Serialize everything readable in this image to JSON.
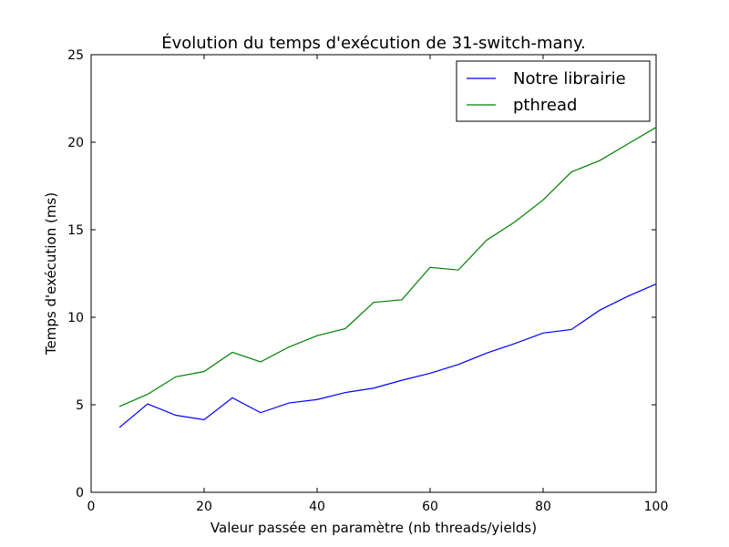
{
  "chart_data": {
    "type": "line",
    "title": "Évolution du temps d'exécution de 31-switch-many.",
    "xlabel": "Valeur passée en paramètre (nb threads/yields)",
    "ylabel": "Temps d'exécution (ms)",
    "xlim": [
      0,
      100
    ],
    "ylim": [
      0,
      25
    ],
    "xticks": [
      "0",
      "20",
      "40",
      "60",
      "80",
      "100"
    ],
    "yticks": [
      "0",
      "5",
      "10",
      "15",
      "20",
      "25"
    ],
    "grid": false,
    "legend_position": "top-right",
    "x": [
      5,
      10,
      15,
      20,
      25,
      30,
      35,
      40,
      45,
      50,
      55,
      60,
      65,
      70,
      75,
      80,
      85,
      90,
      95,
      100
    ],
    "series": [
      {
        "name": "Notre librairie",
        "color": "#0000ff",
        "values": [
          3.7,
          5.05,
          4.4,
          4.15,
          5.4,
          4.55,
          5.1,
          5.3,
          5.7,
          5.95,
          6.4,
          6.8,
          7.3,
          7.95,
          8.5,
          9.1,
          9.3,
          10.4,
          11.2,
          11.9
        ]
      },
      {
        "name": "pthread",
        "color": "#008000",
        "values": [
          4.9,
          5.6,
          6.6,
          6.9,
          8.0,
          7.45,
          8.3,
          8.95,
          9.35,
          10.85,
          11.0,
          12.85,
          12.7,
          14.4,
          15.45,
          16.7,
          18.3,
          18.95,
          19.9,
          20.85
        ]
      }
    ]
  }
}
